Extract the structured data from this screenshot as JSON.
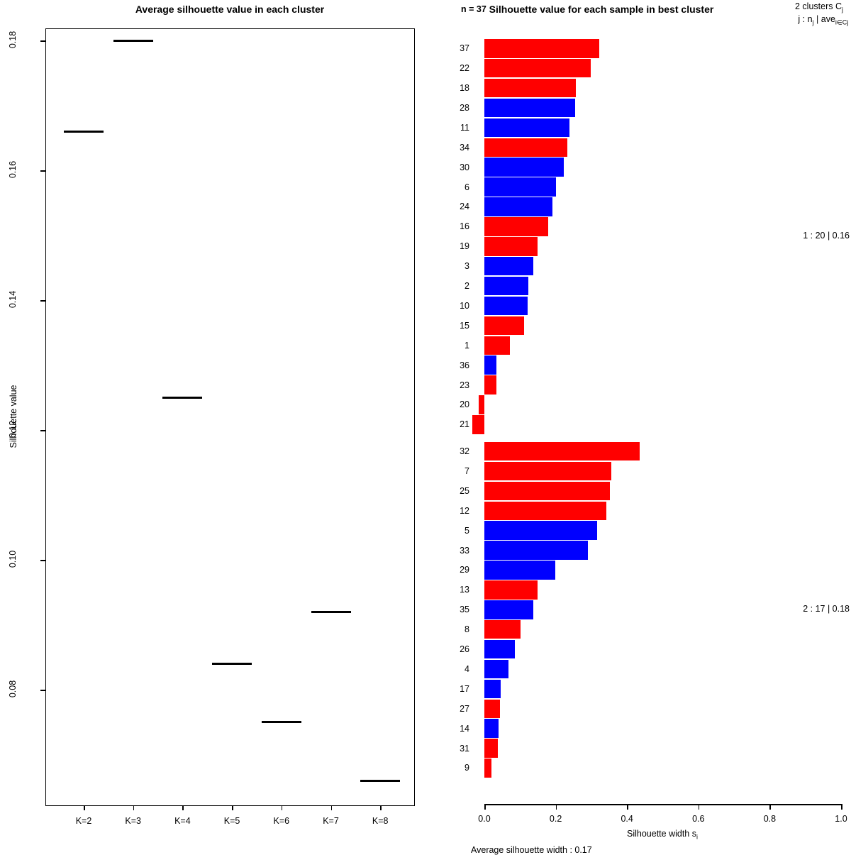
{
  "colors": {
    "red": "#ff0000",
    "blue": "#0000ff",
    "axis": "#000000",
    "background": "#ffffff"
  },
  "left_panel": {
    "title": "Average silhouette value in each cluster",
    "ylabel": "Silhouette value",
    "x_tick_labels": [
      "K=2",
      "K=3",
      "K=4",
      "K=5",
      "K=6",
      "K=7",
      "K=8"
    ],
    "y_tick_labels": [
      "0.08",
      "0.10",
      "0.12",
      "0.14",
      "0.16",
      "0.18"
    ]
  },
  "right_panel": {
    "title": "Silhouette value for each sample in best cluster",
    "n_label": "n = 37",
    "header_line1": {
      "pre": "2  clusters  C",
      "sub": "j"
    },
    "header_line2": {
      "p1": "j :  n",
      "s1": "j",
      "p2": " | ave",
      "s2": "i∈Cj",
      "p3": "  s",
      "s3": "i"
    },
    "xlabel": {
      "pre": "Silhouette width s",
      "sub": "i"
    },
    "x_tick_labels": [
      "0.0",
      "0.2",
      "0.4",
      "0.6",
      "0.8",
      "1.0"
    ],
    "cluster_labels": [
      "1 :   20  |  0.16",
      "2 :   17  |  0.18"
    ],
    "footer": "Average silhouette width :  0.17"
  },
  "chart_data": [
    {
      "type": "scatter",
      "title": "Average silhouette value in each cluster",
      "xlabel": "",
      "ylabel": "Silhouette value",
      "marker": "horizontal-segment",
      "categories": [
        "K=2",
        "K=3",
        "K=4",
        "K=5",
        "K=6",
        "K=7",
        "K=8"
      ],
      "values": [
        0.166,
        0.18,
        0.125,
        0.084,
        0.075,
        0.092,
        0.066
      ],
      "yticks": [
        0.08,
        0.1,
        0.12,
        0.14,
        0.16,
        0.18
      ],
      "ylim": [
        0.062,
        0.182
      ],
      "grid": false,
      "legend": "none"
    },
    {
      "type": "bar",
      "orientation": "horizontal",
      "title": "Silhouette value for each sample in best cluster",
      "xlabel": "Silhouette width si",
      "n": 37,
      "n_clusters": 2,
      "average_silhouette_width": 0.17,
      "xticks": [
        0.0,
        0.2,
        0.4,
        0.6,
        0.8,
        1.0
      ],
      "xlim": [
        0,
        1
      ],
      "grid": false,
      "clusters": [
        {
          "cluster": 1,
          "size": 20,
          "ave_width": 0.16,
          "samples": [
            {
              "label": "37",
              "value": 0.322,
              "color": "#ff0000"
            },
            {
              "label": "22",
              "value": 0.298,
              "color": "#ff0000"
            },
            {
              "label": "18",
              "value": 0.256,
              "color": "#ff0000"
            },
            {
              "label": "28",
              "value": 0.254,
              "color": "#0000ff"
            },
            {
              "label": "11",
              "value": 0.239,
              "color": "#0000ff"
            },
            {
              "label": "34",
              "value": 0.233,
              "color": "#ff0000"
            },
            {
              "label": "30",
              "value": 0.222,
              "color": "#0000ff"
            },
            {
              "label": "6",
              "value": 0.201,
              "color": "#0000ff"
            },
            {
              "label": "24",
              "value": 0.19,
              "color": "#0000ff"
            },
            {
              "label": "16",
              "value": 0.178,
              "color": "#ff0000"
            },
            {
              "label": "19",
              "value": 0.15,
              "color": "#ff0000"
            },
            {
              "label": "3",
              "value": 0.137,
              "color": "#0000ff"
            },
            {
              "label": "2",
              "value": 0.124,
              "color": "#0000ff"
            },
            {
              "label": "10",
              "value": 0.122,
              "color": "#0000ff"
            },
            {
              "label": "15",
              "value": 0.112,
              "color": "#ff0000"
            },
            {
              "label": "1",
              "value": 0.071,
              "color": "#ff0000"
            },
            {
              "label": "36",
              "value": 0.034,
              "color": "#0000ff"
            },
            {
              "label": "23",
              "value": 0.033,
              "color": "#ff0000"
            },
            {
              "label": "20",
              "value": -0.016,
              "color": "#ff0000"
            },
            {
              "label": "21",
              "value": -0.034,
              "color": "#ff0000"
            }
          ]
        },
        {
          "cluster": 2,
          "size": 17,
          "ave_width": 0.18,
          "samples": [
            {
              "label": "32",
              "value": 0.436,
              "color": "#ff0000"
            },
            {
              "label": "7",
              "value": 0.355,
              "color": "#ff0000"
            },
            {
              "label": "25",
              "value": 0.352,
              "color": "#ff0000"
            },
            {
              "label": "12",
              "value": 0.342,
              "color": "#ff0000"
            },
            {
              "label": "5",
              "value": 0.316,
              "color": "#0000ff"
            },
            {
              "label": "33",
              "value": 0.29,
              "color": "#0000ff"
            },
            {
              "label": "29",
              "value": 0.198,
              "color": "#0000ff"
            },
            {
              "label": "13",
              "value": 0.149,
              "color": "#ff0000"
            },
            {
              "label": "35",
              "value": 0.137,
              "color": "#0000ff"
            },
            {
              "label": "8",
              "value": 0.102,
              "color": "#ff0000"
            },
            {
              "label": "26",
              "value": 0.086,
              "color": "#0000ff"
            },
            {
              "label": "4",
              "value": 0.068,
              "color": "#0000ff"
            },
            {
              "label": "17",
              "value": 0.046,
              "color": "#0000ff"
            },
            {
              "label": "27",
              "value": 0.043,
              "color": "#ff0000"
            },
            {
              "label": "14",
              "value": 0.039,
              "color": "#0000ff"
            },
            {
              "label": "31",
              "value": 0.038,
              "color": "#ff0000"
            },
            {
              "label": "9",
              "value": 0.019,
              "color": "#ff0000"
            }
          ]
        }
      ]
    }
  ]
}
